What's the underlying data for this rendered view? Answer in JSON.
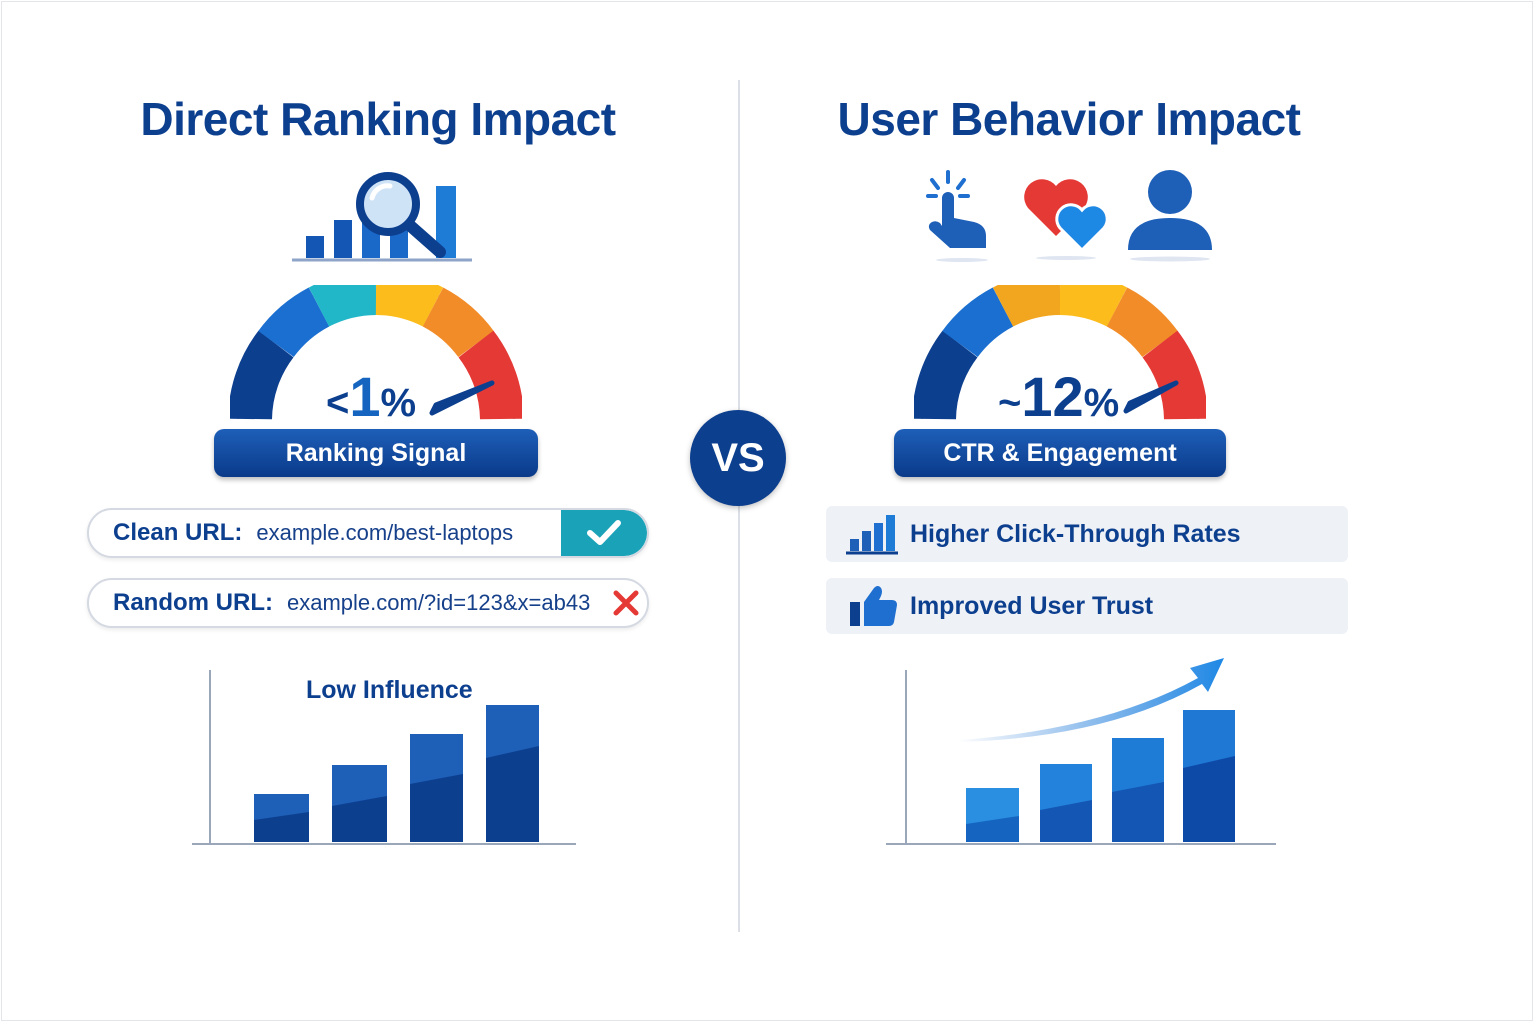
{
  "left": {
    "title": "Direct Ranking Impact",
    "gauge": {
      "value_prefix": "<",
      "value_number": "1",
      "value_suffix": "%",
      "label": "Ranking Signal"
    },
    "urls": [
      {
        "label": "Clean URL:",
        "value": "example.com/best-laptops",
        "status": "good"
      },
      {
        "label": "Random URL:",
        "value": "example.com/?id=123&x=ab43",
        "status": "bad"
      }
    ],
    "chart_caption": "Low Influence"
  },
  "vs_label": "VS",
  "right": {
    "title": "User Behavior Impact",
    "gauge": {
      "value_prefix": "~",
      "value_number": "12",
      "value_suffix": "%",
      "label": "CTR & Engagement"
    },
    "features": [
      {
        "icon": "bar-chart-icon",
        "label": "Higher Click-Through Rates"
      },
      {
        "icon": "thumbs-up-icon",
        "label": "Improved User Trust"
      }
    ]
  },
  "colors": {
    "navy": "#0d3f8f",
    "blue": "#1565c0",
    "teal": "#1aa3b8",
    "red": "#e53935",
    "yellow": "#fbbc1c",
    "orange": "#f28c28"
  }
}
